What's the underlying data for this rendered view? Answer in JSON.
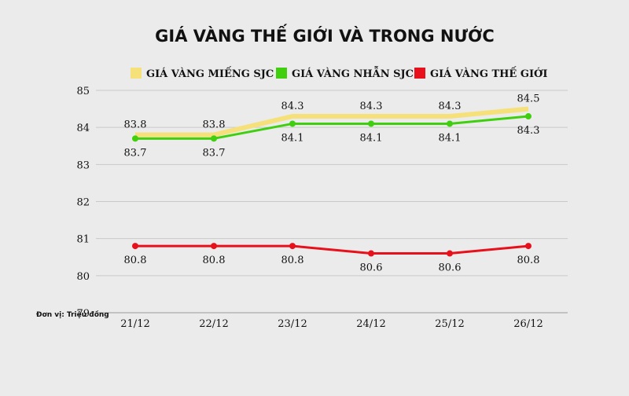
{
  "chart_data": {
    "type": "line",
    "title": "GIÁ VÀNG THẾ GIỚI VÀ TRONG NƯỚC",
    "unit_note": "Đơn vị: Triệu đồng",
    "categories": [
      "21/12",
      "22/12",
      "23/12",
      "24/12",
      "25/12",
      "26/12"
    ],
    "ylim": [
      79,
      85
    ],
    "yticks": [
      79,
      80,
      81,
      82,
      83,
      84,
      85
    ],
    "grid": true,
    "legend_position": "top",
    "series": [
      {
        "name": "GIÁ VÀNG MIẾNG SJC",
        "color": "#f5e07a",
        "values": [
          83.8,
          83.8,
          84.3,
          84.3,
          84.3,
          84.5
        ],
        "labels": [
          "83.8",
          "83.8",
          "84.3",
          "84.3",
          "84.3",
          "84.5"
        ]
      },
      {
        "name": "GIÁ VÀNG NHẪN SJC",
        "color": "#3fcf0f",
        "values": [
          83.7,
          83.7,
          84.1,
          84.1,
          84.1,
          84.3
        ],
        "labels": [
          "83.7",
          "83.7",
          "84.1",
          "84.1",
          "84.1",
          "84.3"
        ]
      },
      {
        "name": "GIÁ VÀNG THẾ GIỚI",
        "color": "#e8101a",
        "values": [
          80.8,
          80.8,
          80.8,
          80.6,
          80.6,
          80.8
        ],
        "labels": [
          "80.8",
          "80.8",
          "80.8",
          "80.6",
          "80.6",
          "80.8"
        ]
      }
    ]
  }
}
